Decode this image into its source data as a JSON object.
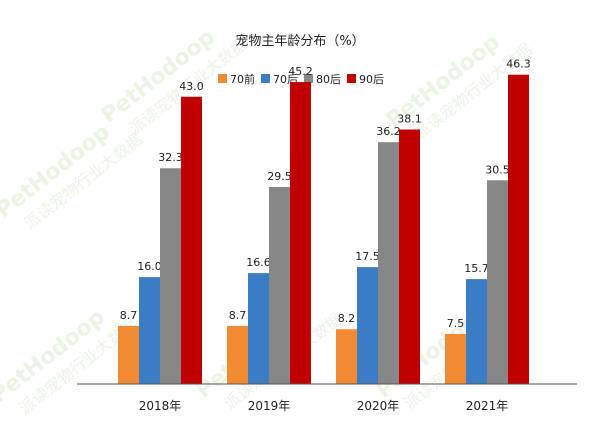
{
  "watermark": {
    "brand": "PetHodoop",
    "sub": "派读宠物行业大数据"
  },
  "chart_data": {
    "type": "bar",
    "title": "宠物主年龄分布（%）",
    "categories": [
      "2018年",
      "2019年",
      "2020年",
      "2021年"
    ],
    "series": [
      {
        "name": "70前",
        "color": "#f08b33",
        "values": [
          8.7,
          8.7,
          8.2,
          7.5
        ]
      },
      {
        "name": "70后",
        "color": "#3b7dc4",
        "values": [
          16.0,
          16.6,
          17.5,
          15.7
        ]
      },
      {
        "name": "80后",
        "color": "#878787",
        "values": [
          32.3,
          29.5,
          36.2,
          30.5
        ]
      },
      {
        "name": "90后",
        "color": "#c00000",
        "values": [
          43.0,
          45.2,
          38.1,
          46.3
        ]
      }
    ],
    "ylim": [
      0,
      50
    ],
    "grid": false,
    "legend": "top",
    "xlabel": "",
    "ylabel": ""
  }
}
